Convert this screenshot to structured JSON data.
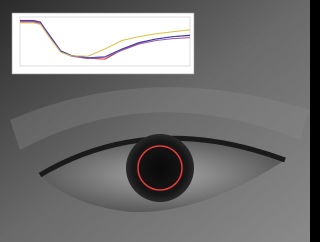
{
  "chart_data": {
    "type": "line",
    "x": [
      0,
      8,
      12,
      18,
      24,
      30,
      40,
      50,
      60,
      70,
      80,
      90,
      100
    ],
    "xlim": [
      0,
      100
    ],
    "ylim": [
      0,
      100
    ],
    "series": [
      {
        "color": "#e03030",
        "values": [
          93,
          93,
          90,
          58,
          30,
          21,
          16,
          14,
          33,
          47,
          55,
          60,
          62
        ]
      },
      {
        "color": "#3040c0",
        "values": [
          92,
          92,
          89,
          60,
          31,
          22,
          17,
          19,
          35,
          48,
          55,
          60,
          63
        ]
      },
      {
        "color": "#9060b0",
        "values": [
          90,
          90,
          87,
          57,
          29,
          20,
          15,
          18,
          32,
          45,
          52,
          56,
          58
        ]
      },
      {
        "color": "#e0c040",
        "values": [
          88,
          88,
          85,
          55,
          28,
          21,
          20,
          35,
          52,
          60,
          66,
          70,
          74
        ]
      }
    ]
  }
}
